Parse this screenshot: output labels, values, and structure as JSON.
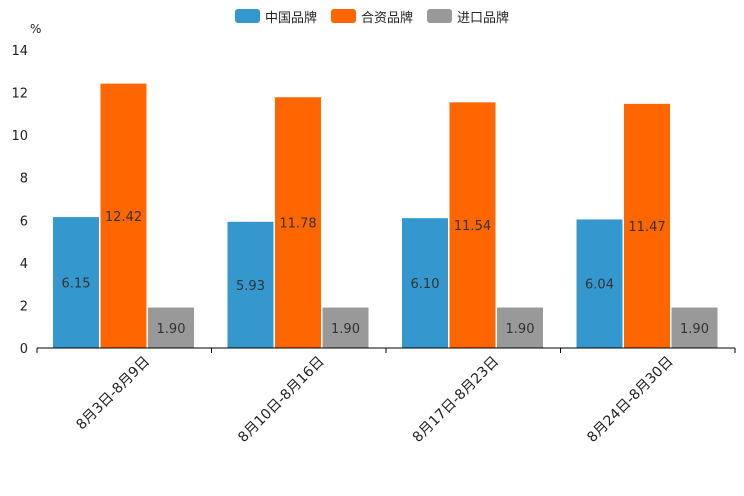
{
  "chart_data": {
    "type": "bar",
    "unit_label": "%",
    "categories": [
      "8月3日-8月9日",
      "8月10日-8月16日",
      "8月17日-8月23日",
      "8月24日-8月30日"
    ],
    "series": [
      {
        "name": "中国品牌",
        "color": "#3498cf",
        "values": [
          6.15,
          5.93,
          6.1,
          6.04
        ],
        "labels": [
          "6.15",
          "5.93",
          "6.10",
          "6.04"
        ]
      },
      {
        "name": "合资品牌",
        "color": "#ff6600",
        "values": [
          12.42,
          11.78,
          11.54,
          11.47
        ],
        "labels": [
          "12.42",
          "11.78",
          "11.54",
          "11.47"
        ]
      },
      {
        "name": "进口品牌",
        "color": "#999999",
        "values": [
          1.9,
          1.9,
          1.9,
          1.9
        ],
        "labels": [
          "1.90",
          "1.90",
          "1.90",
          "1.90"
        ]
      }
    ],
    "ylim": [
      0,
      14
    ],
    "yticks": [
      "0",
      "2",
      "4",
      "6",
      "8",
      "10",
      "12",
      "14"
    ],
    "legend_position": "top-center",
    "grid": false
  }
}
